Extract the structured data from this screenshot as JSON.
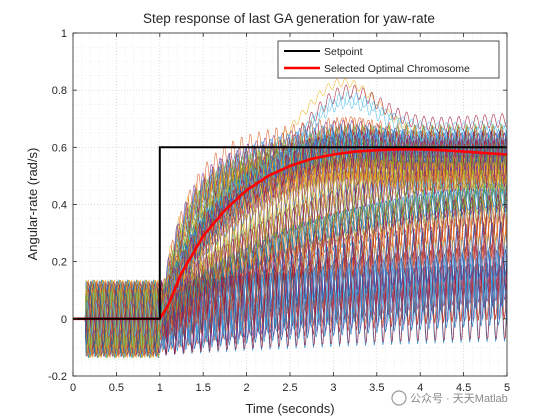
{
  "chart_data": {
    "type": "line",
    "title": "Step response of last GA generation for yaw-rate",
    "xlabel": "Time (seconds)",
    "ylabel": "Angular-rate (rad/s)",
    "xlim": [
      0,
      5
    ],
    "ylim": [
      -0.2,
      1
    ],
    "xticks": [
      "0",
      "0.5",
      "1",
      "1.5",
      "2",
      "2.5",
      "3",
      "3.5",
      "4",
      "4.5",
      "5"
    ],
    "yticks": [
      "-0.2",
      "0",
      "0.2",
      "0.4",
      "0.6",
      "0.8",
      "1"
    ],
    "grid": "major and minor, dotted",
    "legend_position": "top-right",
    "series": [
      {
        "name": "Setpoint",
        "color": "#000000",
        "x": [
          0,
          1,
          1,
          5
        ],
        "y": [
          0,
          0,
          0.6,
          0.6
        ]
      },
      {
        "name": "Selected Optimal Chromosome",
        "color": "#ff0000",
        "x": [
          0,
          1,
          1.1,
          1.25,
          1.5,
          1.75,
          2,
          2.25,
          2.5,
          2.75,
          3,
          3.25,
          3.5,
          3.75,
          4,
          4.25,
          4.5,
          4.75,
          5
        ],
        "y": [
          0,
          0,
          0.05,
          0.16,
          0.29,
          0.38,
          0.45,
          0.5,
          0.535,
          0.56,
          0.575,
          0.585,
          0.59,
          0.593,
          0.593,
          0.59,
          0.585,
          0.58,
          0.575
        ]
      }
    ],
    "population_colors": [
      "#0072bd",
      "#d95319",
      "#edb120",
      "#7e2f8e",
      "#77ac30",
      "#4dbeee",
      "#a2142f"
    ],
    "watermark": "公众号 · 天天Matlab"
  }
}
